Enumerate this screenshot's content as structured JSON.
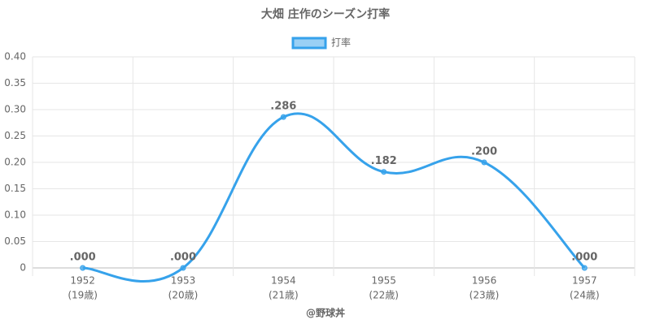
{
  "chart_data": {
    "type": "line",
    "title": "大畑 庄作のシーズン打率",
    "categories": [
      "1952",
      "1953",
      "1954",
      "1955",
      "1956",
      "1957"
    ],
    "ages": [
      "(19歳)",
      "(20歳)",
      "(21歳)",
      "(22歳)",
      "(23歳)",
      "(24歳)"
    ],
    "series": [
      {
        "name": "打率",
        "color": "#36a2eb",
        "values": [
          0,
          0,
          0.286,
          0.182,
          0.2,
          0
        ],
        "value_labels": [
          ".000",
          ".000",
          ".286",
          ".182",
          ".200",
          ".000"
        ]
      }
    ],
    "ylim": [
      0,
      0.4
    ],
    "yticks": [
      0,
      {
        "value": 0.05,
        "label": "0.05"
      },
      {
        "value": 0.1,
        "label": "0.10"
      },
      {
        "value": 0.15,
        "label": "0.15"
      },
      {
        "value": 0.2,
        "label": "0.20"
      },
      {
        "value": 0.25,
        "label": "0.25"
      },
      {
        "value": 0.3,
        "label": "0.30"
      },
      {
        "value": 0.35,
        "label": "0.35"
      },
      {
        "value": 0.4,
        "label": "0.40"
      }
    ],
    "grid": true,
    "legend": "top",
    "footer": "@野球丼"
  }
}
